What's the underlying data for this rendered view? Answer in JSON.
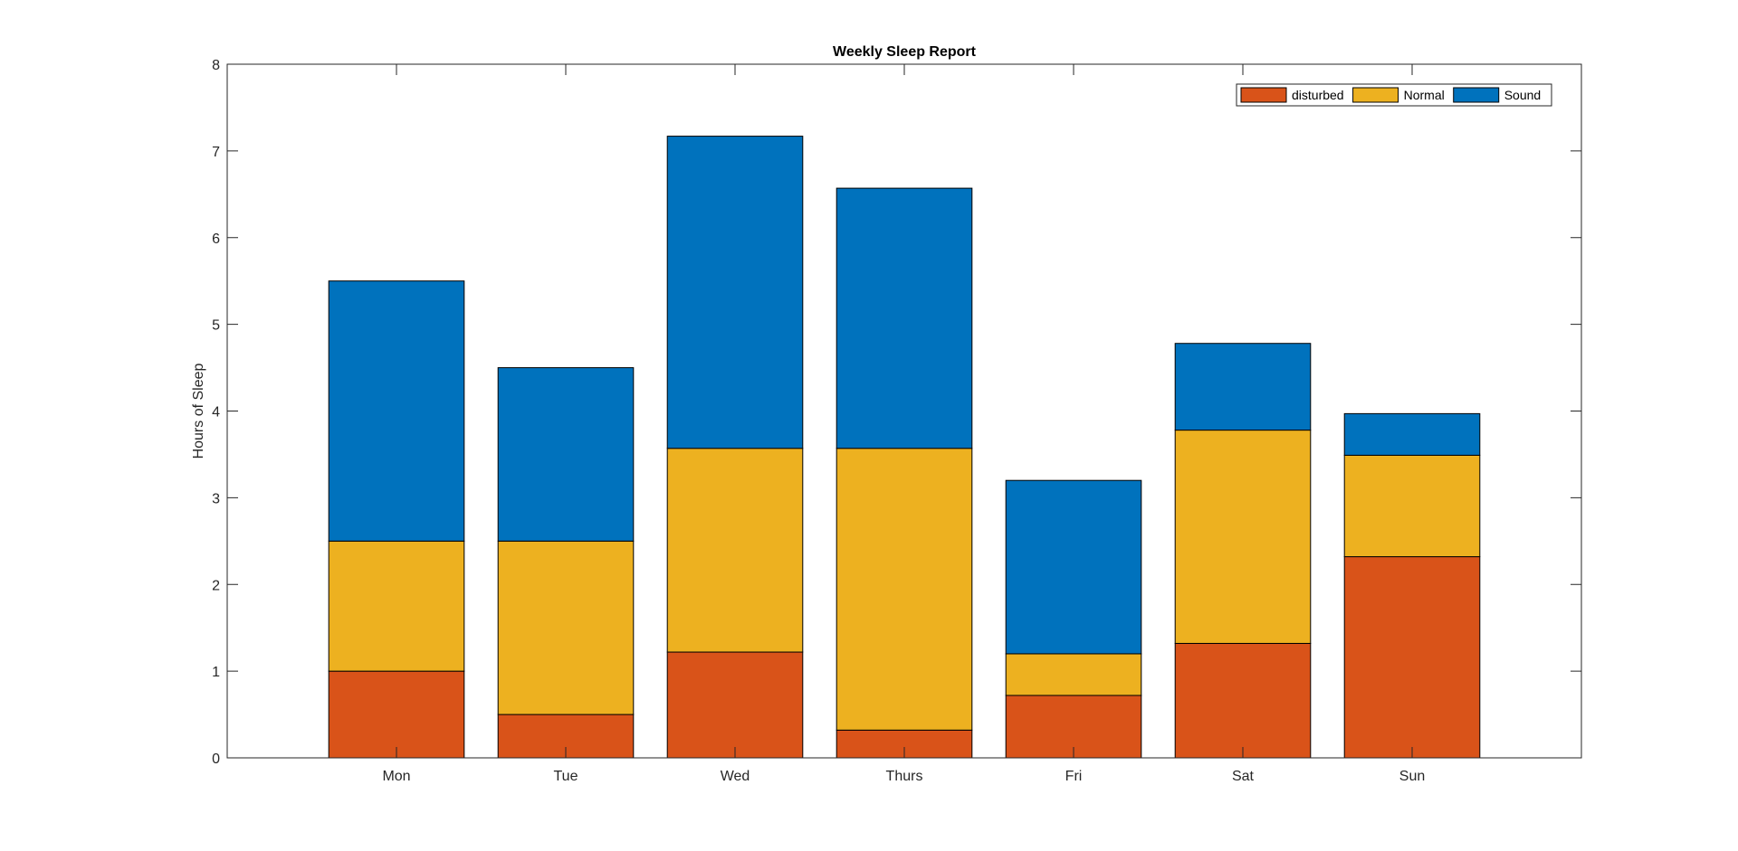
{
  "chart_data": {
    "type": "bar",
    "stacked": true,
    "title": "Weekly Sleep Report",
    "xlabel": "",
    "ylabel": "Hours of Sleep",
    "categories": [
      "Mon",
      "Tue",
      "Wed",
      "Thurs",
      "Fri",
      "Sat",
      "Sun"
    ],
    "series": [
      {
        "name": "disturbed",
        "color": "#D95319",
        "values": [
          1.0,
          0.5,
          1.22,
          0.32,
          0.72,
          1.32,
          2.32
        ]
      },
      {
        "name": "Normal",
        "color": "#EDB120",
        "values": [
          1.5,
          2.0,
          2.35,
          3.25,
          0.48,
          2.46,
          1.17
        ]
      },
      {
        "name": "Sound",
        "color": "#0072BD",
        "values": [
          3.0,
          2.0,
          3.6,
          3.0,
          2.0,
          1.0,
          0.48
        ]
      }
    ],
    "ylim": [
      0,
      8
    ],
    "yticks": [
      0,
      1,
      2,
      3,
      4,
      5,
      6,
      7,
      8
    ],
    "xlim": [
      0,
      8
    ],
    "grid": false,
    "legend": {
      "placement": "top-right",
      "orientation": "horizontal"
    }
  }
}
